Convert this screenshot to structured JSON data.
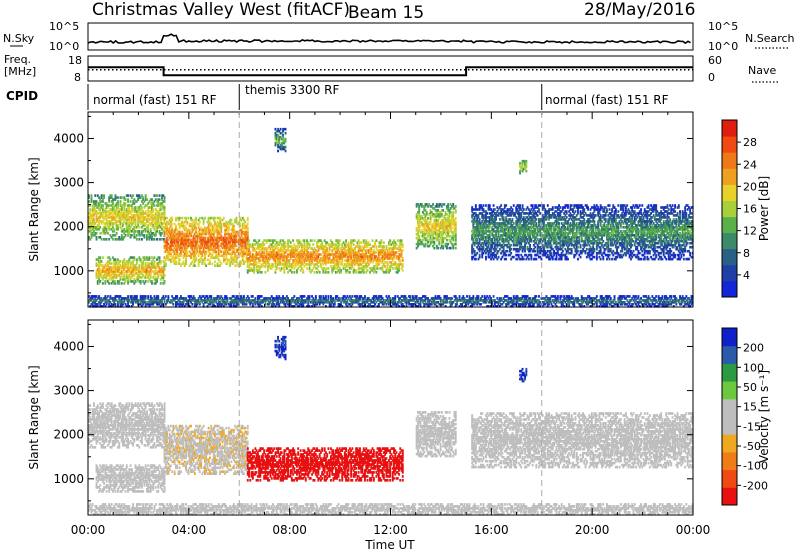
{
  "title": {
    "station": "Christmas Valley West (fitACF)",
    "beam": "Beam 15",
    "date": "28/May/2016"
  },
  "noise_panel": {
    "left_label": "N.Sky",
    "left_ticks": [
      "10^5",
      "10^0"
    ],
    "right_label": "N.Search",
    "right_ticks": [
      "10^5",
      "10^0"
    ]
  },
  "freq_panel": {
    "left_label_1": "Freq.",
    "left_label_2": "[MHz]",
    "left_ticks": [
      "18",
      "8"
    ],
    "right_label": "Nave",
    "right_ticks": [
      "60",
      "0"
    ]
  },
  "cpid": {
    "label": "CPID",
    "segments": [
      {
        "label": "normal (fast) 151 RF",
        "start_hour": 0,
        "end_hour": 6
      },
      {
        "label": "themis 3300 RF",
        "start_hour": 6,
        "end_hour": 18
      },
      {
        "label": "normal (fast) 151 RF",
        "start_hour": 18,
        "end_hour": 24
      }
    ]
  },
  "power_panel": {
    "ylabel": "Slant Range [km]",
    "cbar_label": "Power [dB]",
    "cbar_ticks": [
      "28",
      "24",
      "20",
      "16",
      "12",
      "8",
      "4"
    ]
  },
  "velocity_panel": {
    "ylabel": "Slant Range [km]",
    "cbar_label": "Velocity [m s⁻¹]",
    "cbar_ticks": [
      "200",
      "100",
      "50",
      "15",
      "-15",
      "-50",
      "-100",
      "-200"
    ]
  },
  "xaxis": {
    "label": "Time UT",
    "ticks": [
      "00:00",
      "04:00",
      "08:00",
      "12:00",
      "16:00",
      "20:00",
      "00:00"
    ]
  },
  "chart_data": {
    "type": "heatmap",
    "xlabel": "Time UT",
    "ylabel": "Slant Range [km]",
    "xlim_hours": [
      0,
      24
    ],
    "ylim_km": [
      180,
      4600
    ],
    "y_ticks_km": [
      1000,
      2000,
      3000,
      4000
    ],
    "frequency_mhz": {
      "hours": [
        0,
        3,
        3,
        15,
        15,
        24
      ],
      "values": [
        13.5,
        13.5,
        10.3,
        10.3,
        13.5,
        13.5
      ]
    },
    "nave": {
      "hours": [
        0,
        3,
        3,
        15,
        15,
        24
      ],
      "values": [
        27,
        27,
        27,
        27,
        27,
        27
      ]
    },
    "power_scale_db": [
      0,
      32
    ],
    "velocity_scale_ms": [
      -250,
      250
    ],
    "power_palette": [
      "#1226d9",
      "#1f3fa6",
      "#2a5f86",
      "#3c8a6a",
      "#5bb04a",
      "#a8d03a",
      "#e8d22a",
      "#f0a020",
      "#f07818",
      "#ee4a12",
      "#e01e10"
    ],
    "velocity_palette": [
      "#e81010",
      "#f04a12",
      "#f07c18",
      "#f0a820",
      "#bebebe",
      "#bebebe",
      "#6cc83c",
      "#2c9a40",
      "#2a5aaa",
      "#1020c8"
    ],
    "echo_regions": [
      {
        "t0": 0.0,
        "t1": 3.0,
        "r0": 1700,
        "r1": 2700,
        "power_db": 20,
        "velocity_ms": 0
      },
      {
        "t0": 0.3,
        "t1": 3.0,
        "r0": 700,
        "r1": 1300,
        "power_db": 22,
        "velocity_ms": -10
      },
      {
        "t0": 3.0,
        "t1": 6.3,
        "r0": 1100,
        "r1": 2200,
        "power_db": 26,
        "velocity_ms": -40
      },
      {
        "t0": 6.3,
        "t1": 12.5,
        "r0": 950,
        "r1": 1700,
        "power_db": 24,
        "velocity_ms": -220
      },
      {
        "t0": 13.0,
        "t1": 14.6,
        "r0": 1500,
        "r1": 2500,
        "power_db": 20,
        "velocity_ms": 20
      },
      {
        "t0": 15.2,
        "t1": 24.0,
        "r0": 1250,
        "r1": 2500,
        "power_db": 12,
        "velocity_ms": 0
      },
      {
        "t0": 0.0,
        "t1": 24.0,
        "r0": 180,
        "r1": 420,
        "power_db": 10,
        "velocity_ms": 10
      },
      {
        "t0": 7.4,
        "t1": 7.8,
        "r0": 3700,
        "r1": 4200,
        "power_db": 14,
        "velocity_ms": 200
      },
      {
        "t0": 17.1,
        "t1": 17.4,
        "r0": 3200,
        "r1": 3500,
        "power_db": 18,
        "velocity_ms": 200
      }
    ]
  }
}
